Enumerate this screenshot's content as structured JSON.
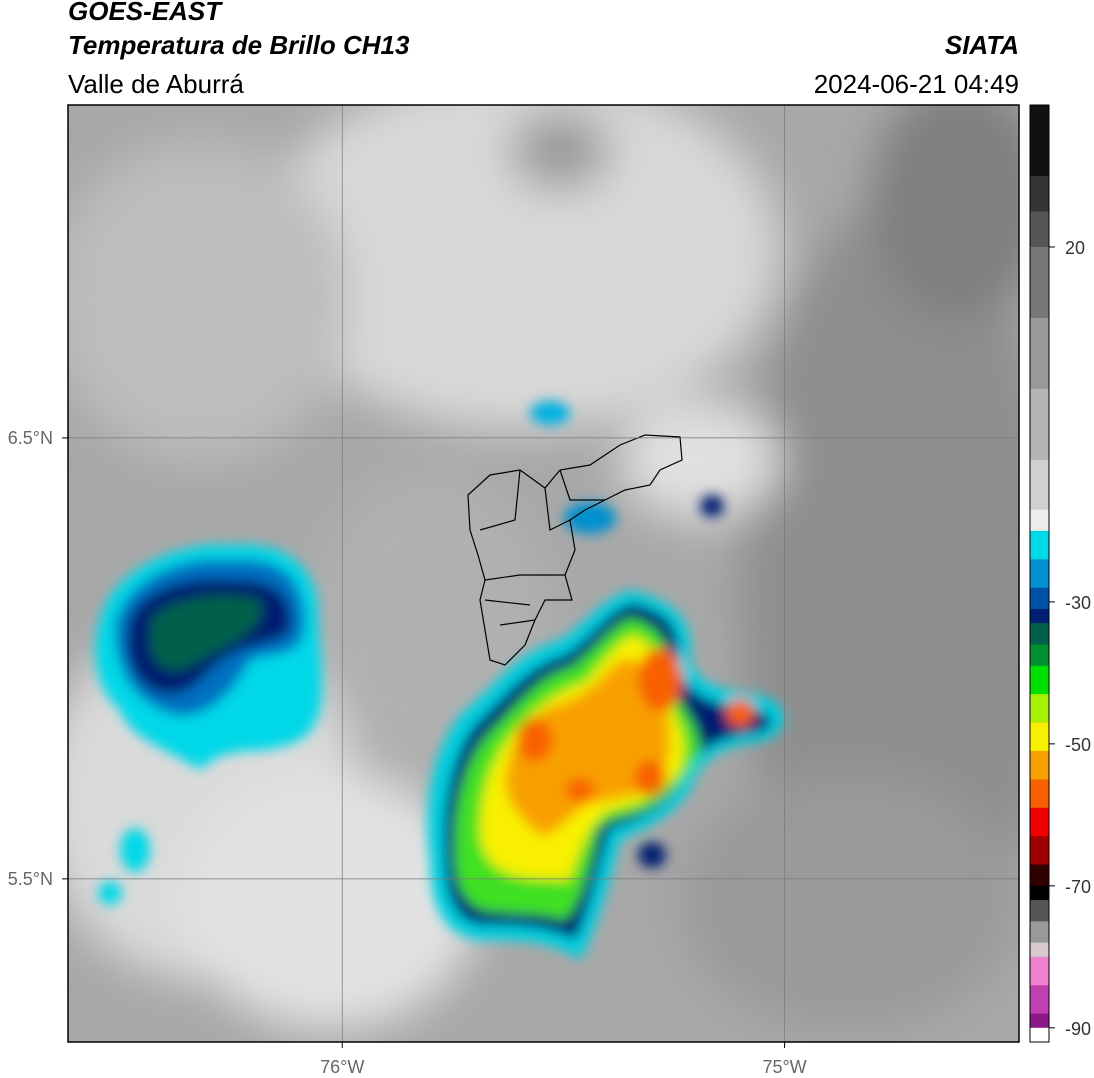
{
  "header": {
    "title": "GOES-EAST",
    "subtitle": "Temperatura de Brillo CH13",
    "region": "Valle de Aburrá",
    "source": "SIATA",
    "datetime": "2024-06-21 04:49"
  },
  "map": {
    "xlim": [
      -76.62,
      -74.47
    ],
    "ylim": [
      5.13,
      7.255
    ],
    "xticks": [
      {
        "value": -76,
        "label": "76°W"
      },
      {
        "value": -75,
        "label": "75°W"
      }
    ],
    "yticks": [
      {
        "value": 6.5,
        "label": "6.5°N"
      },
      {
        "value": 5.5,
        "label": "5.5°N"
      }
    ],
    "grid": true
  },
  "colorbar": {
    "lim": [
      -92,
      40
    ],
    "ticks": [
      20,
      -30,
      -50,
      -70,
      -90
    ],
    "stops": [
      {
        "value": 40,
        "color": "#111111"
      },
      {
        "value": 30,
        "color": "#333333"
      },
      {
        "value": 25,
        "color": "#555555"
      },
      {
        "value": 20,
        "color": "#777777"
      },
      {
        "value": 10,
        "color": "#999999"
      },
      {
        "value": 0,
        "color": "#b5b5b5"
      },
      {
        "value": -10,
        "color": "#d0d0d0"
      },
      {
        "value": -17,
        "color": "#ececec"
      },
      {
        "value": -20,
        "color": "#00d8e8"
      },
      {
        "value": -24,
        "color": "#0090d0"
      },
      {
        "value": -28,
        "color": "#0050a8"
      },
      {
        "value": -31,
        "color": "#001f70"
      },
      {
        "value": -33,
        "color": "#00604a"
      },
      {
        "value": -36,
        "color": "#009030"
      },
      {
        "value": -39,
        "color": "#00e000"
      },
      {
        "value": -43,
        "color": "#a8f000"
      },
      {
        "value": -47,
        "color": "#f8f000"
      },
      {
        "value": -51,
        "color": "#f8a000"
      },
      {
        "value": -55,
        "color": "#f86000"
      },
      {
        "value": -59,
        "color": "#f00000"
      },
      {
        "value": -63,
        "color": "#a00000"
      },
      {
        "value": -67,
        "color": "#300000"
      },
      {
        "value": -70,
        "color": "#000000"
      },
      {
        "value": -72,
        "color": "#555555"
      },
      {
        "value": -75,
        "color": "#999999"
      },
      {
        "value": -78,
        "color": "#d8c8d0"
      },
      {
        "value": -80,
        "color": "#f080d0"
      },
      {
        "value": -84,
        "color": "#c040b0"
      },
      {
        "value": -88,
        "color": "#8a1a8a"
      },
      {
        "value": -90,
        "color": "#ffffff"
      }
    ]
  }
}
